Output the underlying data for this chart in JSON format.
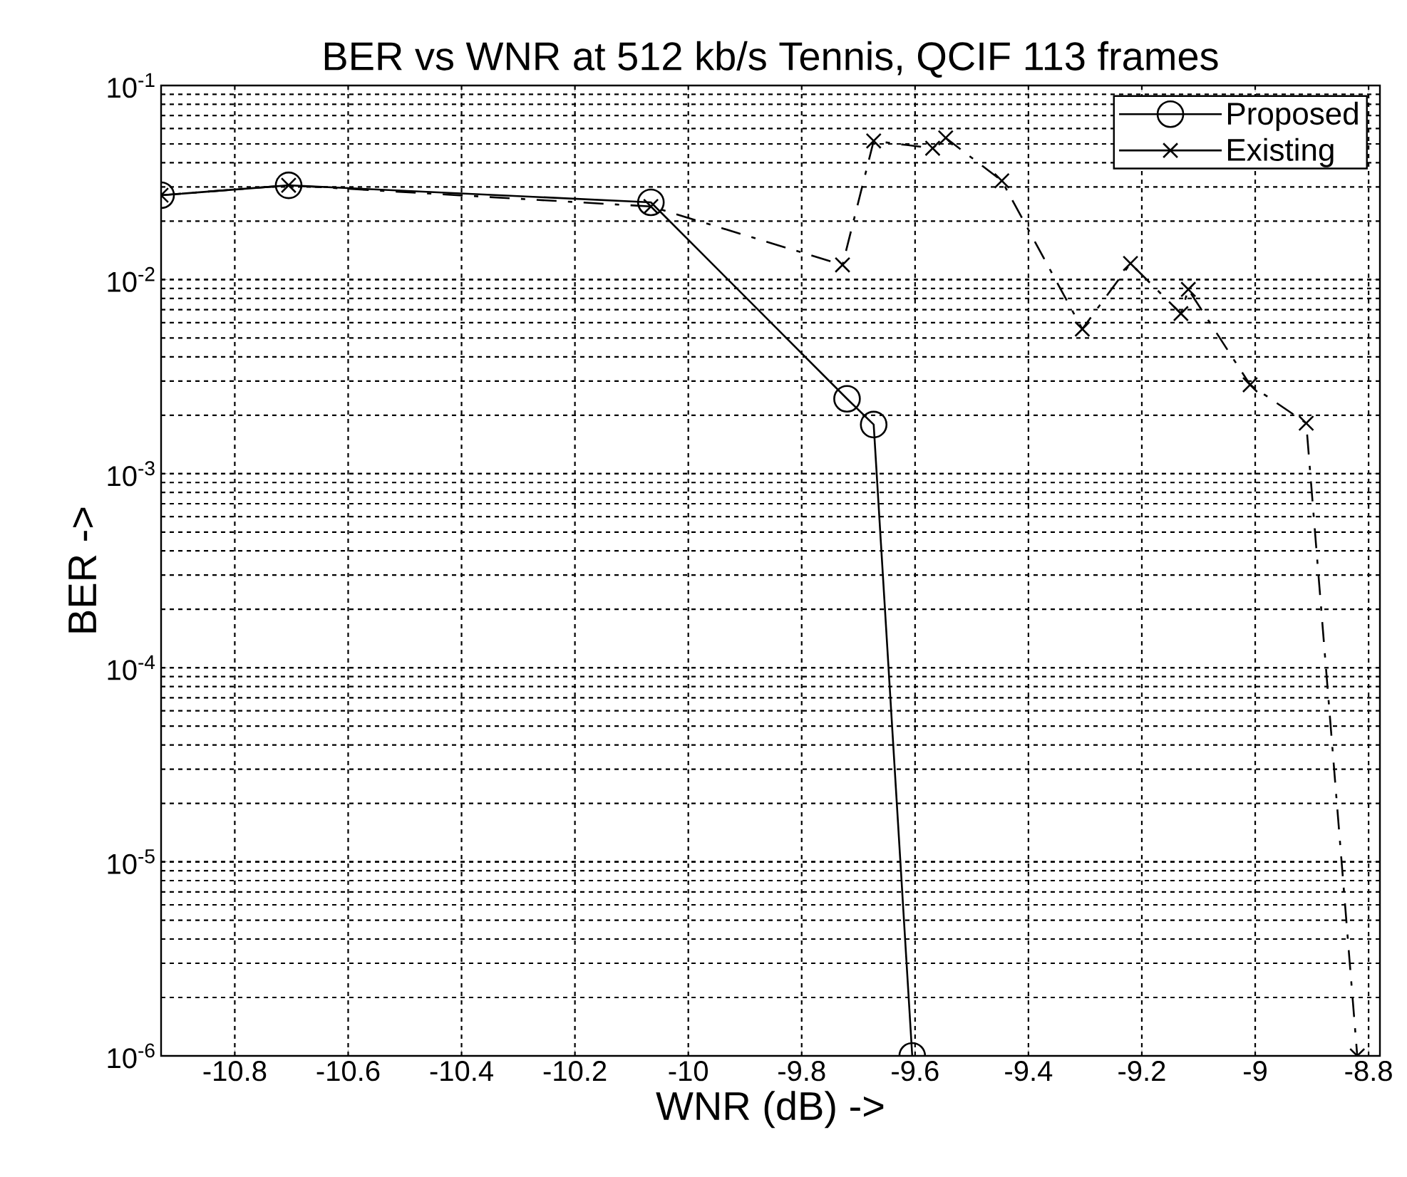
{
  "chart_data": {
    "type": "line",
    "title": "BER vs WNR at 512 kb/s Tennis, QCIF 113 frames",
    "xlabel": "WNR (dB) ->",
    "ylabel": "BER ->",
    "log": "y",
    "grid": true,
    "legend": "top right",
    "xlim": [
      -10.93,
      -8.78
    ],
    "ylim": [
      1e-06,
      0.1
    ],
    "xticks": [
      -10.8,
      -10.6,
      -10.4,
      -10.2,
      -10,
      -9.8,
      -9.6,
      -9.4,
      -9.2,
      -9,
      -8.8
    ],
    "yticks": [
      {
        "value": 1e-06,
        "label": "10$^{-6}$"
      },
      {
        "value": 1e-05,
        "label": "10$^{-5}$"
      },
      {
        "value": 0.0001,
        "label": "10$^{-4}$"
      },
      {
        "value": 0.001,
        "label": "10$^{-3}$"
      },
      {
        "value": 0.01,
        "label": "10$^{-2}$"
      },
      {
        "value": 0.1,
        "label": "10$^{-1}$"
      }
    ],
    "series": [
      {
        "name": "Proposed",
        "color": "#000000",
        "marker": "circle",
        "line_style": "solid",
        "x": [
          -10.93,
          -10.705,
          -10.066,
          -9.72,
          -9.673,
          -9.605
        ],
        "values": [
          0.0272,
          0.0306,
          0.025,
          0.00243,
          0.00179,
          1e-06
        ]
      },
      {
        "name": "Existing",
        "color": "#000000",
        "marker": "cross",
        "line_style": "dashed",
        "x": [
          -10.93,
          -10.705,
          -10.066,
          -9.728,
          -9.673,
          -9.569,
          -9.546,
          -9.447,
          -9.305,
          -9.22,
          -9.131,
          -9.118,
          -9.009,
          -8.91,
          -8.82
        ],
        "values": [
          0.0272,
          0.0306,
          0.0238,
          0.0119,
          0.0518,
          0.0475,
          0.0537,
          0.0323,
          0.00556,
          0.0121,
          0.00668,
          0.0089,
          0.00287,
          0.00182,
          1e-06
        ]
      }
    ]
  }
}
